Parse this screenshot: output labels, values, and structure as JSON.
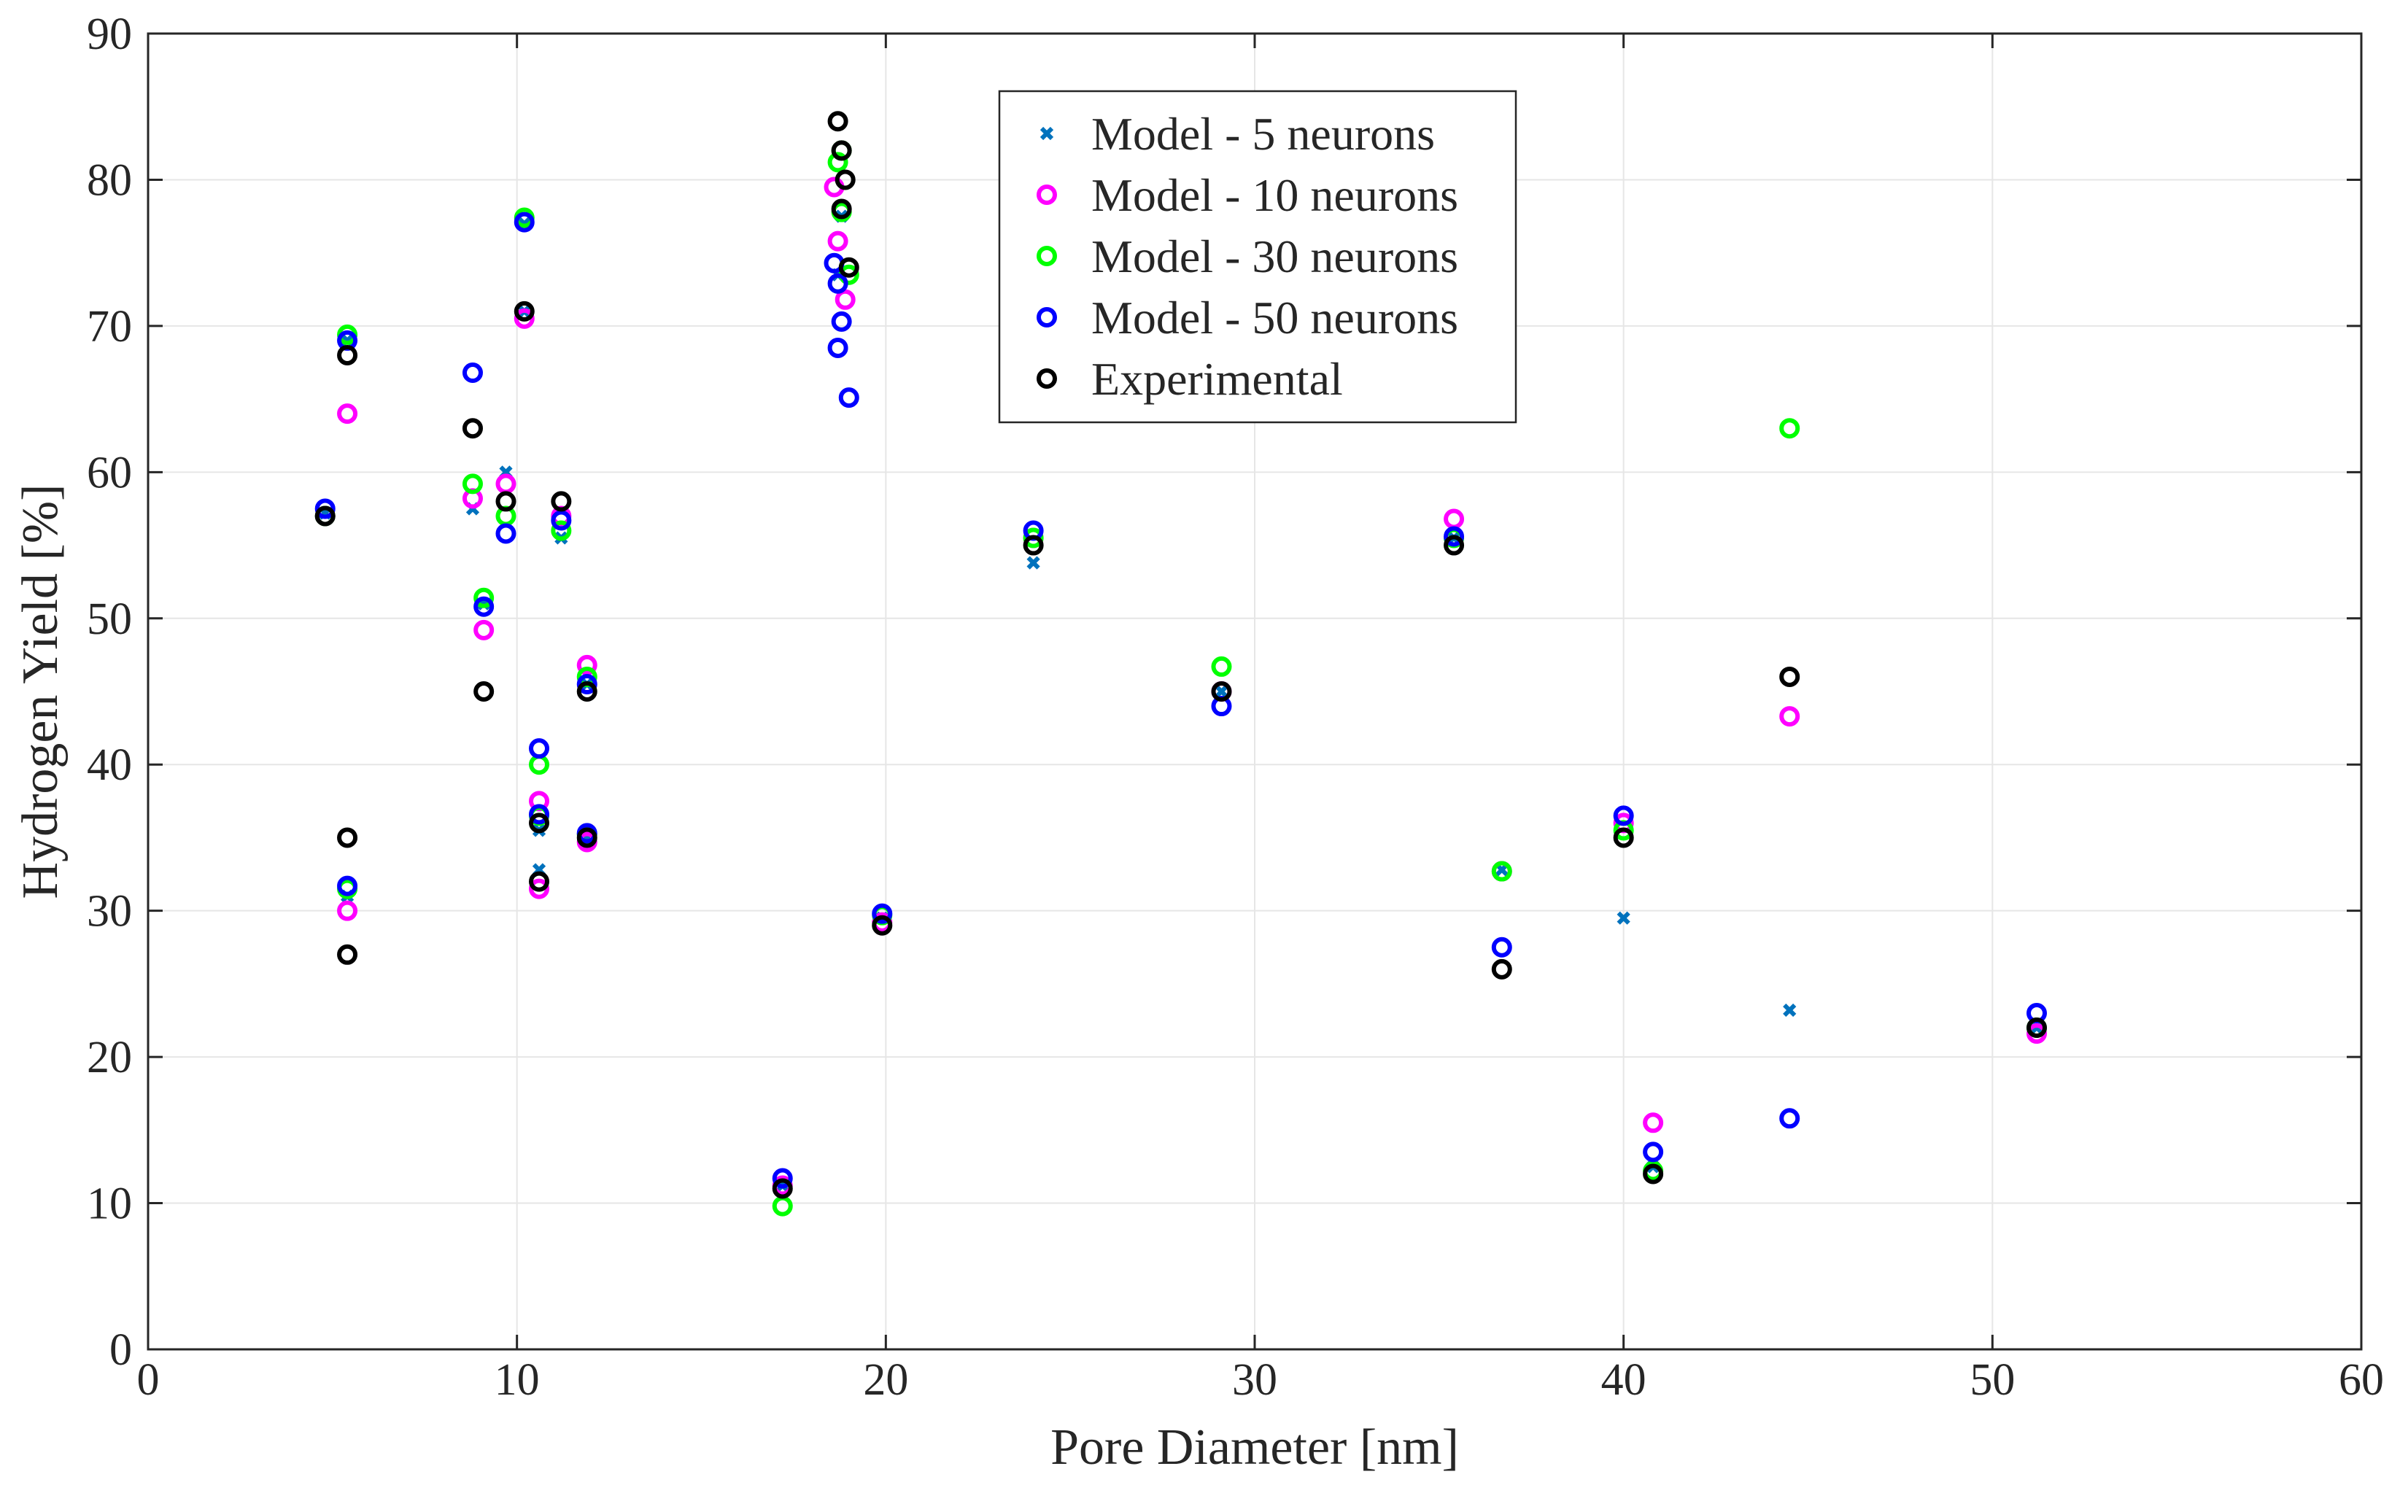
{
  "chart_data": {
    "type": "scatter",
    "title": "",
    "xlabel": "Pore Diameter [nm]",
    "ylabel": "Hydrogen Yield [%]",
    "xlim": [
      0,
      60
    ],
    "ylim": [
      0,
      90
    ],
    "xticks": [
      "0",
      "10",
      "20",
      "30",
      "40",
      "50",
      "60"
    ],
    "yticks": [
      "0",
      "10",
      "20",
      "30",
      "40",
      "50",
      "60",
      "70",
      "80",
      "90"
    ],
    "grid": true,
    "legend_position": "top-center",
    "series": [
      {
        "name": "Model - 5 neurons",
        "marker": "x",
        "color": "#0072BD",
        "points": [
          [
            4.8,
            57.2
          ],
          [
            5.4,
            69.0
          ],
          [
            5.4,
            31.0
          ],
          [
            8.8,
            57.5
          ],
          [
            9.1,
            51.0
          ],
          [
            9.7,
            60.0
          ],
          [
            10.2,
            77.0
          ],
          [
            10.2,
            71.0
          ],
          [
            10.6,
            35.5
          ],
          [
            10.6,
            32.8
          ],
          [
            11.2,
            55.5
          ],
          [
            11.9,
            45.5
          ],
          [
            11.9,
            35.0
          ],
          [
            17.2,
            11.2
          ],
          [
            18.7,
            73.5
          ],
          [
            18.8,
            77.5
          ],
          [
            19.9,
            29.5
          ],
          [
            24.0,
            53.8
          ],
          [
            29.1,
            45.0
          ],
          [
            35.4,
            55.5
          ],
          [
            36.7,
            32.8
          ],
          [
            40.0,
            29.5
          ],
          [
            40.8,
            12.5
          ],
          [
            44.5,
            23.2
          ],
          [
            51.2,
            22.0
          ]
        ]
      },
      {
        "name": "Model - 10 neurons",
        "marker": "o",
        "color": "#FF00FF",
        "points": [
          [
            4.8,
            57.0
          ],
          [
            5.4,
            64.0
          ],
          [
            5.4,
            30.0
          ],
          [
            8.8,
            58.2
          ],
          [
            9.1,
            49.2
          ],
          [
            9.7,
            59.2
          ],
          [
            10.2,
            70.5
          ],
          [
            10.6,
            37.5
          ],
          [
            10.6,
            31.5
          ],
          [
            11.2,
            57.0
          ],
          [
            11.9,
            46.8
          ],
          [
            11.9,
            34.7
          ],
          [
            17.2,
            11.2
          ],
          [
            18.6,
            79.5
          ],
          [
            18.7,
            75.8
          ],
          [
            18.9,
            71.8
          ],
          [
            19.9,
            29.2
          ],
          [
            24.0,
            55.5
          ],
          [
            29.1,
            45.0
          ],
          [
            35.4,
            56.8
          ],
          [
            36.7,
            32.7
          ],
          [
            40.0,
            36.0
          ],
          [
            40.8,
            15.5
          ],
          [
            44.5,
            43.3
          ],
          [
            51.2,
            21.6
          ]
        ]
      },
      {
        "name": "Model - 30 neurons",
        "marker": "o",
        "color": "#00FF00",
        "points": [
          [
            4.8,
            57.0
          ],
          [
            5.4,
            69.4
          ],
          [
            5.4,
            31.5
          ],
          [
            8.8,
            59.2
          ],
          [
            9.1,
            51.4
          ],
          [
            9.7,
            57.0
          ],
          [
            10.2,
            77.4
          ],
          [
            10.6,
            40.0
          ],
          [
            10.6,
            36.5
          ],
          [
            11.2,
            56.0
          ],
          [
            11.9,
            46.0
          ],
          [
            11.9,
            35.2
          ],
          [
            17.2,
            9.8
          ],
          [
            18.7,
            81.2
          ],
          [
            18.8,
            82.0
          ],
          [
            18.8,
            77.8
          ],
          [
            19.0,
            73.5
          ],
          [
            19.9,
            29.7
          ],
          [
            24.0,
            55.5
          ],
          [
            29.1,
            46.7
          ],
          [
            35.4,
            55.5
          ],
          [
            36.7,
            32.7
          ],
          [
            40.0,
            35.5
          ],
          [
            40.8,
            12.2
          ],
          [
            44.5,
            63.0
          ],
          [
            51.2,
            22.0
          ]
        ]
      },
      {
        "name": "Model - 50 neurons",
        "marker": "o",
        "color": "#0000FF",
        "points": [
          [
            4.8,
            57.5
          ],
          [
            5.4,
            69.0
          ],
          [
            5.4,
            31.7
          ],
          [
            8.8,
            66.8
          ],
          [
            9.1,
            50.8
          ],
          [
            9.7,
            55.8
          ],
          [
            10.2,
            77.1
          ],
          [
            10.6,
            41.1
          ],
          [
            10.6,
            36.6
          ],
          [
            11.2,
            56.7
          ],
          [
            11.9,
            45.5
          ],
          [
            11.9,
            35.3
          ],
          [
            17.2,
            11.7
          ],
          [
            18.6,
            74.3
          ],
          [
            18.7,
            72.9
          ],
          [
            18.8,
            70.3
          ],
          [
            18.7,
            68.5
          ],
          [
            19.0,
            65.1
          ],
          [
            19.9,
            29.8
          ],
          [
            24.0,
            56.0
          ],
          [
            29.1,
            44.0
          ],
          [
            35.4,
            55.6
          ],
          [
            36.7,
            27.5
          ],
          [
            40.0,
            36.5
          ],
          [
            40.8,
            13.5
          ],
          [
            44.5,
            15.8
          ],
          [
            51.2,
            23.0
          ]
        ]
      },
      {
        "name": "Experimental",
        "marker": "o",
        "color": "#000000",
        "points": [
          [
            4.8,
            57.0
          ],
          [
            5.4,
            68.0
          ],
          [
            5.4,
            35.0
          ],
          [
            5.4,
            27.0
          ],
          [
            8.8,
            63.0
          ],
          [
            9.1,
            45.0
          ],
          [
            9.7,
            58.0
          ],
          [
            10.2,
            71.0
          ],
          [
            10.6,
            36.0
          ],
          [
            10.6,
            32.0
          ],
          [
            11.2,
            58.0
          ],
          [
            11.9,
            45.0
          ],
          [
            11.9,
            35.0
          ],
          [
            17.2,
            11.0
          ],
          [
            18.7,
            84.0
          ],
          [
            18.8,
            82.0
          ],
          [
            18.9,
            80.0
          ],
          [
            18.8,
            78.0
          ],
          [
            19.0,
            74.0
          ],
          [
            19.9,
            29.0
          ],
          [
            24.0,
            55.0
          ],
          [
            29.1,
            45.0
          ],
          [
            35.4,
            55.0
          ],
          [
            36.7,
            26.0
          ],
          [
            40.0,
            35.0
          ],
          [
            40.8,
            12.0
          ],
          [
            44.5,
            46.0
          ],
          [
            51.2,
            22.0
          ]
        ]
      }
    ]
  }
}
